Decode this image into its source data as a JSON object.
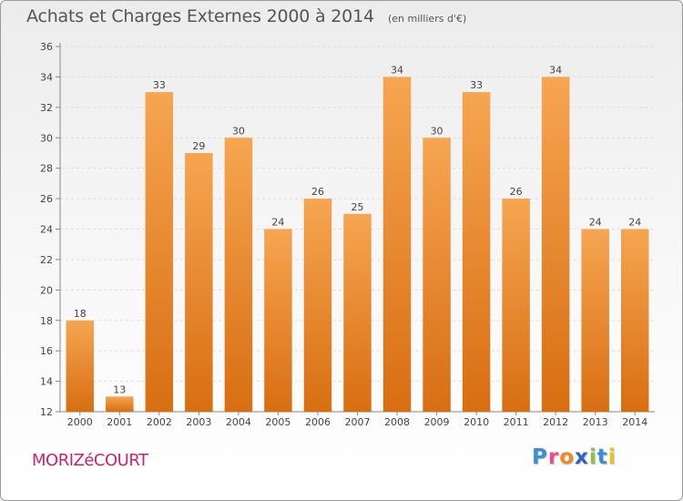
{
  "header": {
    "title": "Achats et Charges Externes 2000 à 2014",
    "unit": "(en milliers d'€)"
  },
  "footer": {
    "commune": "MORIZéCOURT",
    "brand_letters": [
      "P",
      "r",
      "o",
      "x",
      "i",
      "t",
      "i"
    ],
    "brand_colors": [
      "#3a8fd6",
      "#e94e8a",
      "#f08a1c",
      "#2f62c9",
      "#8bc34a",
      "#3a8fd6",
      "#e9c21c"
    ]
  },
  "colors": {
    "bar_light": "#f6a551",
    "bar_dark": "#d86e12",
    "grid": "#dddddd",
    "axis": "#888888",
    "text": "#444444"
  },
  "chart_data": {
    "type": "bar",
    "categories": [
      "2000",
      "2001",
      "2002",
      "2003",
      "2004",
      "2005",
      "2006",
      "2007",
      "2008",
      "2009",
      "2010",
      "2011",
      "2012",
      "2013",
      "2014"
    ],
    "values": [
      18,
      13,
      33,
      29,
      30,
      24,
      26,
      25,
      34,
      30,
      33,
      26,
      34,
      24,
      24
    ],
    "ylim": [
      12,
      36
    ],
    "yticks": [
      12,
      14,
      16,
      18,
      20,
      22,
      24,
      26,
      28,
      30,
      32,
      34,
      36
    ],
    "grid": "horizontal dashed",
    "legend": "none",
    "data_labels": true
  }
}
